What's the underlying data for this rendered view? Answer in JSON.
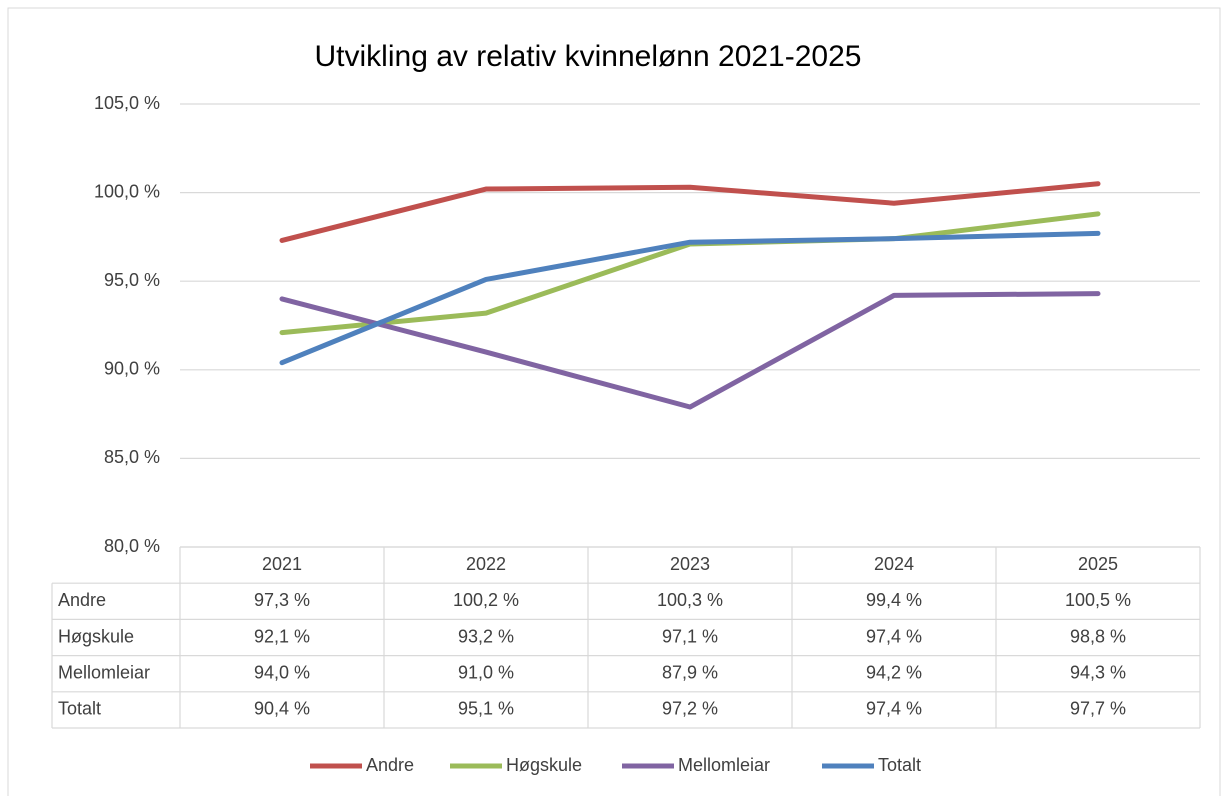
{
  "chart_data": {
    "type": "line",
    "title": "Utvikling av relativ kvinnelønn 2021-2025",
    "categories": [
      "2021",
      "2022",
      "2023",
      "2024",
      "2025"
    ],
    "series": [
      {
        "name": "Andre",
        "color": "#c0504d",
        "values": [
          97.3,
          100.2,
          100.3,
          99.4,
          100.5
        ],
        "value_labels": [
          "97,3 %",
          "100,2 %",
          "100,3 %",
          "99,4 %",
          "100,5 %"
        ]
      },
      {
        "name": "Høgskule",
        "color": "#9bbb59",
        "values": [
          92.1,
          93.2,
          97.1,
          97.4,
          98.8
        ],
        "value_labels": [
          "92,1 %",
          "93,2 %",
          "97,1 %",
          "97,4 %",
          "98,8 %"
        ]
      },
      {
        "name": "Mellomleiar",
        "color": "#8064a2",
        "values": [
          94.0,
          91.0,
          87.9,
          94.2,
          94.3
        ],
        "value_labels": [
          "94,0 %",
          "91,0 %",
          "87,9 %",
          "94,2 %",
          "94,3 %"
        ]
      },
      {
        "name": "Totalt",
        "color": "#4f81bd",
        "values": [
          90.4,
          95.1,
          97.2,
          97.4,
          97.7
        ],
        "value_labels": [
          "90,4 %",
          "95,1 %",
          "97,2 %",
          "97,4 %",
          "97,7 %"
        ]
      }
    ],
    "ylim": [
      80,
      105
    ],
    "yticks": [
      {
        "value": 80,
        "label": "80,0 %"
      },
      {
        "value": 85,
        "label": "85,0 %"
      },
      {
        "value": 90,
        "label": "90,0 %"
      },
      {
        "value": 95,
        "label": "95,0 %"
      },
      {
        "value": 100,
        "label": "100,0 %"
      },
      {
        "value": 105,
        "label": "105,0 %"
      }
    ],
    "grid": true,
    "legend": "bottom"
  }
}
